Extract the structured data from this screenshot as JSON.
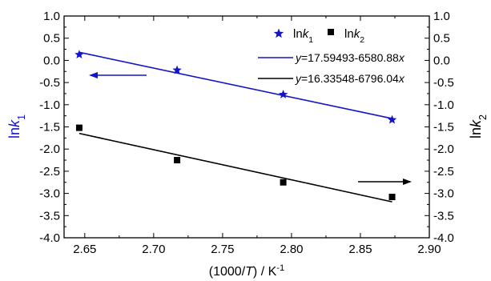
{
  "chart_data": {
    "type": "scatter",
    "xlabel": "(1000/T) / K-1",
    "ylabel_left": "lnk1",
    "ylabel_right": "lnk2",
    "x_ticks": [
      "2.65",
      "2.70",
      "2.75",
      "2.80",
      "2.85",
      "2.90"
    ],
    "y_ticks": [
      "1.0",
      "0.5",
      "0.0",
      "-0.5",
      "-1.0",
      "-1.5",
      "-2.0",
      "-2.5",
      "-3.0",
      "-3.5",
      "-4.0"
    ],
    "xlim": [
      2.635,
      2.9
    ],
    "ylim": [
      -4.0,
      1.0
    ],
    "grid": false,
    "legend_position": "top-right",
    "series": [
      {
        "name": "lnk1",
        "marker": "star",
        "color": "#1414c8",
        "axis": "left",
        "x": [
          2.646,
          2.717,
          2.794,
          2.873
        ],
        "y": [
          0.13,
          -0.22,
          -0.77,
          -1.34
        ],
        "fit_label": "y=17.59493-6580.88x",
        "fit": {
          "intercept": 17.59493,
          "slope": -6.58088
        }
      },
      {
        "name": "lnk2",
        "marker": "square",
        "color": "#000000",
        "axis": "right",
        "x": [
          2.646,
          2.717,
          2.794,
          2.873
        ],
        "y": [
          -1.52,
          -2.25,
          -2.75,
          -3.08
        ],
        "fit_label": "y=16.33548-6796.04x",
        "fit": {
          "intercept": 16.33548,
          "slope": -6.79604
        }
      }
    ],
    "annotations": [
      {
        "type": "arrow",
        "direction": "left",
        "color": "#1414c8",
        "meaning": "lnk1 uses left axis"
      },
      {
        "type": "arrow",
        "direction": "right",
        "color": "#000000",
        "meaning": "lnk2 uses right axis"
      }
    ]
  }
}
